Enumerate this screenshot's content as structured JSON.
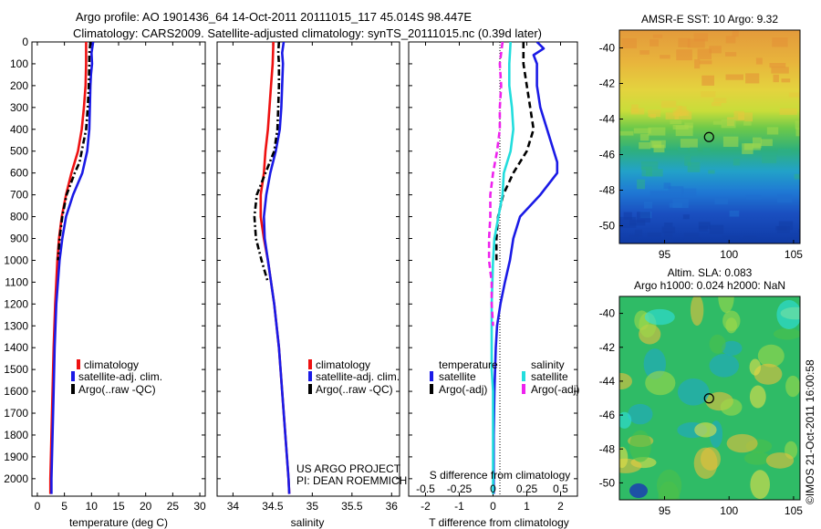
{
  "title": {
    "line1": "Argo profile: AO 1901436_64 14-Oct-2011 20111015_117 45.014S 98.447E",
    "line2": "Climatology: CARS2009. Satellite-adjusted climatology: synTS_20111015.nc (0.39d later)"
  },
  "colors": {
    "climatology": "#ee1111",
    "satellite": "#1a1ae6",
    "argo": "#000000",
    "sal_satellite": "#22dddd",
    "sal_argo": "#ee22ee"
  },
  "chart_data": [
    {
      "type": "line",
      "id": "temperature",
      "xlabel": "temperature (deg C)",
      "ylabel": "",
      "xlim": [
        -1,
        31
      ],
      "ylim": [
        2080,
        0
      ],
      "x_ticks": [
        "0",
        "5",
        "10",
        "15",
        "20",
        "25",
        "30"
      ],
      "x_tick_values": [
        0,
        5,
        10,
        15,
        20,
        25,
        30
      ],
      "y_ticks": [
        "0",
        "100",
        "200",
        "300",
        "400",
        "500",
        "600",
        "700",
        "800",
        "900",
        "1000",
        "1100",
        "1200",
        "1300",
        "1400",
        "1500",
        "1600",
        "1700",
        "1800",
        "1900",
        "2000"
      ],
      "y_tick_values": [
        0,
        100,
        200,
        300,
        400,
        500,
        600,
        700,
        800,
        900,
        1000,
        1100,
        1200,
        1300,
        1400,
        1500,
        1600,
        1700,
        1800,
        1900,
        2000
      ],
      "legend": [
        "climatology",
        "satellite-adj. clim.",
        "Argo(..raw -QC)"
      ],
      "series": [
        {
          "name": "climatology",
          "color": "#ee1111",
          "style": "solid",
          "depth": [
            0,
            100,
            200,
            300,
            400,
            500,
            600,
            700,
            800,
            900,
            1000,
            1200,
            1400,
            1600,
            1800,
            2000,
            2070
          ],
          "values": [
            9.0,
            9.0,
            8.9,
            8.6,
            8.2,
            7.5,
            6.3,
            5.3,
            4.5,
            4.0,
            3.7,
            3.3,
            3.0,
            2.8,
            2.6,
            2.4,
            2.4
          ]
        },
        {
          "name": "satellite-adj. clim.",
          "color": "#1a1ae6",
          "style": "solid",
          "depth": [
            0,
            50,
            100,
            150,
            200,
            300,
            400,
            500,
            600,
            700,
            800,
            900,
            1000,
            1200,
            1400,
            1600,
            1800,
            2000,
            2070
          ],
          "values": [
            10.3,
            10.0,
            10.1,
            9.9,
            9.8,
            9.7,
            9.6,
            9.2,
            8.3,
            6.6,
            5.3,
            4.6,
            4.1,
            3.5,
            3.2,
            3.0,
            2.8,
            2.6,
            2.6
          ]
        },
        {
          "name": "Argo(..raw -QC)",
          "color": "#000000",
          "style": "dashdot",
          "depth": [
            0,
            50,
            100,
            200,
            300,
            400,
            500,
            550,
            600,
            700,
            800,
            900,
            1000
          ],
          "values": [
            9.8,
            9.6,
            9.6,
            9.5,
            9.3,
            9.0,
            8.2,
            7.8,
            6.9,
            5.4,
            4.6,
            4.1,
            3.8
          ]
        }
      ]
    },
    {
      "type": "line",
      "id": "salinity",
      "xlabel": "salinity",
      "ylabel": "",
      "xlim": [
        33.8,
        36.1
      ],
      "ylim": [
        2080,
        0
      ],
      "x_ticks": [
        "34",
        "34.5",
        "35",
        "35.5",
        "36"
      ],
      "x_tick_values": [
        34,
        34.5,
        35,
        35.5,
        36
      ],
      "legend": [
        "climatology",
        "satellite-adj. clim.",
        "Argo(..raw -QC)"
      ],
      "annotation": [
        "US ARGO PROJECT",
        "PI: DEAN ROEMMICH"
      ],
      "series": [
        {
          "name": "climatology",
          "color": "#ee1111",
          "style": "solid",
          "depth": [
            0,
            100,
            200,
            300,
            400,
            500,
            600,
            700,
            800,
            900,
            1000,
            1200,
            1400,
            1600,
            1800,
            2000,
            2070
          ],
          "values": [
            34.51,
            34.5,
            34.48,
            34.46,
            34.44,
            34.41,
            34.39,
            34.35,
            34.35,
            34.39,
            34.44,
            34.52,
            34.58,
            34.62,
            34.66,
            34.7,
            34.71
          ]
        },
        {
          "name": "satellite-adj. clim.",
          "color": "#1a1ae6",
          "style": "solid",
          "depth": [
            0,
            50,
            100,
            200,
            300,
            400,
            500,
            600,
            700,
            800,
            900,
            1000,
            1200,
            1400,
            1600,
            1800,
            2000,
            2070
          ],
          "values": [
            34.64,
            34.62,
            34.63,
            34.62,
            34.61,
            34.59,
            34.54,
            34.47,
            34.42,
            34.39,
            34.4,
            34.44,
            34.52,
            34.58,
            34.62,
            34.66,
            34.7,
            34.71
          ]
        },
        {
          "name": "Argo(..raw -QC)",
          "color": "#000000",
          "style": "dashdot",
          "depth": [
            0,
            50,
            100,
            200,
            300,
            400,
            500,
            600,
            700,
            800,
            900,
            1000,
            1100
          ],
          "values": [
            34.58,
            34.57,
            34.58,
            34.58,
            34.57,
            34.56,
            34.52,
            34.41,
            34.3,
            34.27,
            34.29,
            34.36,
            34.44
          ]
        }
      ]
    },
    {
      "type": "line",
      "id": "difference",
      "xlabel": "T difference from climatology",
      "xlabel_top": "S difference from climatology",
      "xlim": [
        -2.5,
        2.5
      ],
      "ylim": [
        2080,
        0
      ],
      "x_ticks": [
        "-2",
        "-1",
        "0",
        "1",
        "2"
      ],
      "x_tick_values": [
        -2,
        -1,
        0,
        1,
        2
      ],
      "s_ticks": [
        "-0.5",
        "-0.25",
        "0",
        "0.25",
        "0.5"
      ],
      "s_tick_values": [
        -0.5,
        -0.25,
        0,
        0.25,
        0.5
      ],
      "legend": {
        "temperature_heading": "temperature",
        "salinity_heading": "salinity",
        "items": [
          "satellite",
          "Argo(-adj)",
          "satellite",
          "Argo(-adj)"
        ]
      },
      "series": [
        {
          "name": "satellite",
          "group": "temperature",
          "color": "#1a1ae6",
          "style": "solid",
          "depth": [
            0,
            30,
            60,
            100,
            200,
            300,
            400,
            500,
            550,
            600,
            700,
            800,
            900,
            1000,
            1100,
            1200,
            1300,
            1400,
            1600,
            1800,
            2000,
            2070
          ],
          "values": [
            1.3,
            1.5,
            1.2,
            1.3,
            1.3,
            1.4,
            1.6,
            1.8,
            1.9,
            1.9,
            1.4,
            0.8,
            0.6,
            0.5,
            0.35,
            0.22,
            0.12,
            0.08,
            0.04,
            0.02,
            0.02,
            0.02
          ]
        },
        {
          "name": "Argo(-adj)",
          "group": "temperature",
          "color": "#000000",
          "style": "dashed",
          "depth": [
            0,
            100,
            200,
            300,
            400,
            500,
            600,
            700,
            800,
            900,
            1000
          ],
          "values": [
            0.9,
            0.9,
            1.0,
            1.1,
            1.2,
            1.0,
            0.6,
            0.3,
            0.15,
            0.1,
            0.1
          ]
        },
        {
          "name": "satellite",
          "group": "salinity",
          "color": "#22dddd",
          "style": "solid",
          "depth": [
            0,
            100,
            200,
            300,
            400,
            500,
            600,
            700,
            800,
            900,
            1000,
            1200,
            1400,
            1500,
            1600,
            1800,
            2000,
            2070
          ],
          "values": [
            0.13,
            0.12,
            0.12,
            0.14,
            0.15,
            0.13,
            0.08,
            0.07,
            0.04,
            0.01,
            0.0,
            -0.01,
            -0.01,
            -0.01,
            0.0,
            0.0,
            0.0,
            0.0
          ]
        },
        {
          "name": "Argo(-adj)",
          "group": "salinity",
          "color": "#ee22ee",
          "style": "dashed",
          "depth": [
            0,
            100,
            200,
            300,
            400,
            500,
            600,
            700,
            800,
            900,
            1000,
            1100,
            1200,
            1300
          ],
          "values": [
            0.07,
            0.05,
            0.06,
            0.05,
            0.05,
            0.03,
            0.0,
            -0.02,
            -0.02,
            -0.03,
            -0.03,
            -0.01,
            -0.01,
            0.0
          ]
        }
      ]
    },
    {
      "type": "heatmap",
      "id": "sst_map",
      "title": "AMSR-E SST: 10 Argo: 9.32",
      "xlim": [
        91.5,
        105.5
      ],
      "ylim": [
        -51,
        -39
      ],
      "x_ticks": [
        "95",
        "100",
        "105"
      ],
      "x_tick_values": [
        95,
        100,
        105
      ],
      "y_ticks": [
        "-40",
        "-42",
        "-44",
        "-46",
        "-48",
        "-50"
      ],
      "y_tick_values": [
        -40,
        -42,
        -44,
        -46,
        -48,
        -50
      ],
      "marker": {
        "lon": 98.447,
        "lat": -45.014
      }
    },
    {
      "type": "heatmap",
      "id": "sla_map",
      "title": "Altim. SLA: 0.083",
      "subtitle": "Argo h1000: 0.024 h2000: NaN",
      "xlim": [
        91.5,
        105.5
      ],
      "ylim": [
        -51,
        -39
      ],
      "x_ticks": [
        "95",
        "100",
        "105"
      ],
      "x_tick_values": [
        95,
        100,
        105
      ],
      "y_ticks": [
        "-40",
        "-42",
        "-44",
        "-46",
        "-48",
        "-50"
      ],
      "y_tick_values": [
        -40,
        -42,
        -44,
        -46,
        -48,
        -50
      ],
      "marker": {
        "lon": 98.447,
        "lat": -45.014
      }
    }
  ],
  "stamp": "©IMOS 21-Oct-2011 16:00:58"
}
